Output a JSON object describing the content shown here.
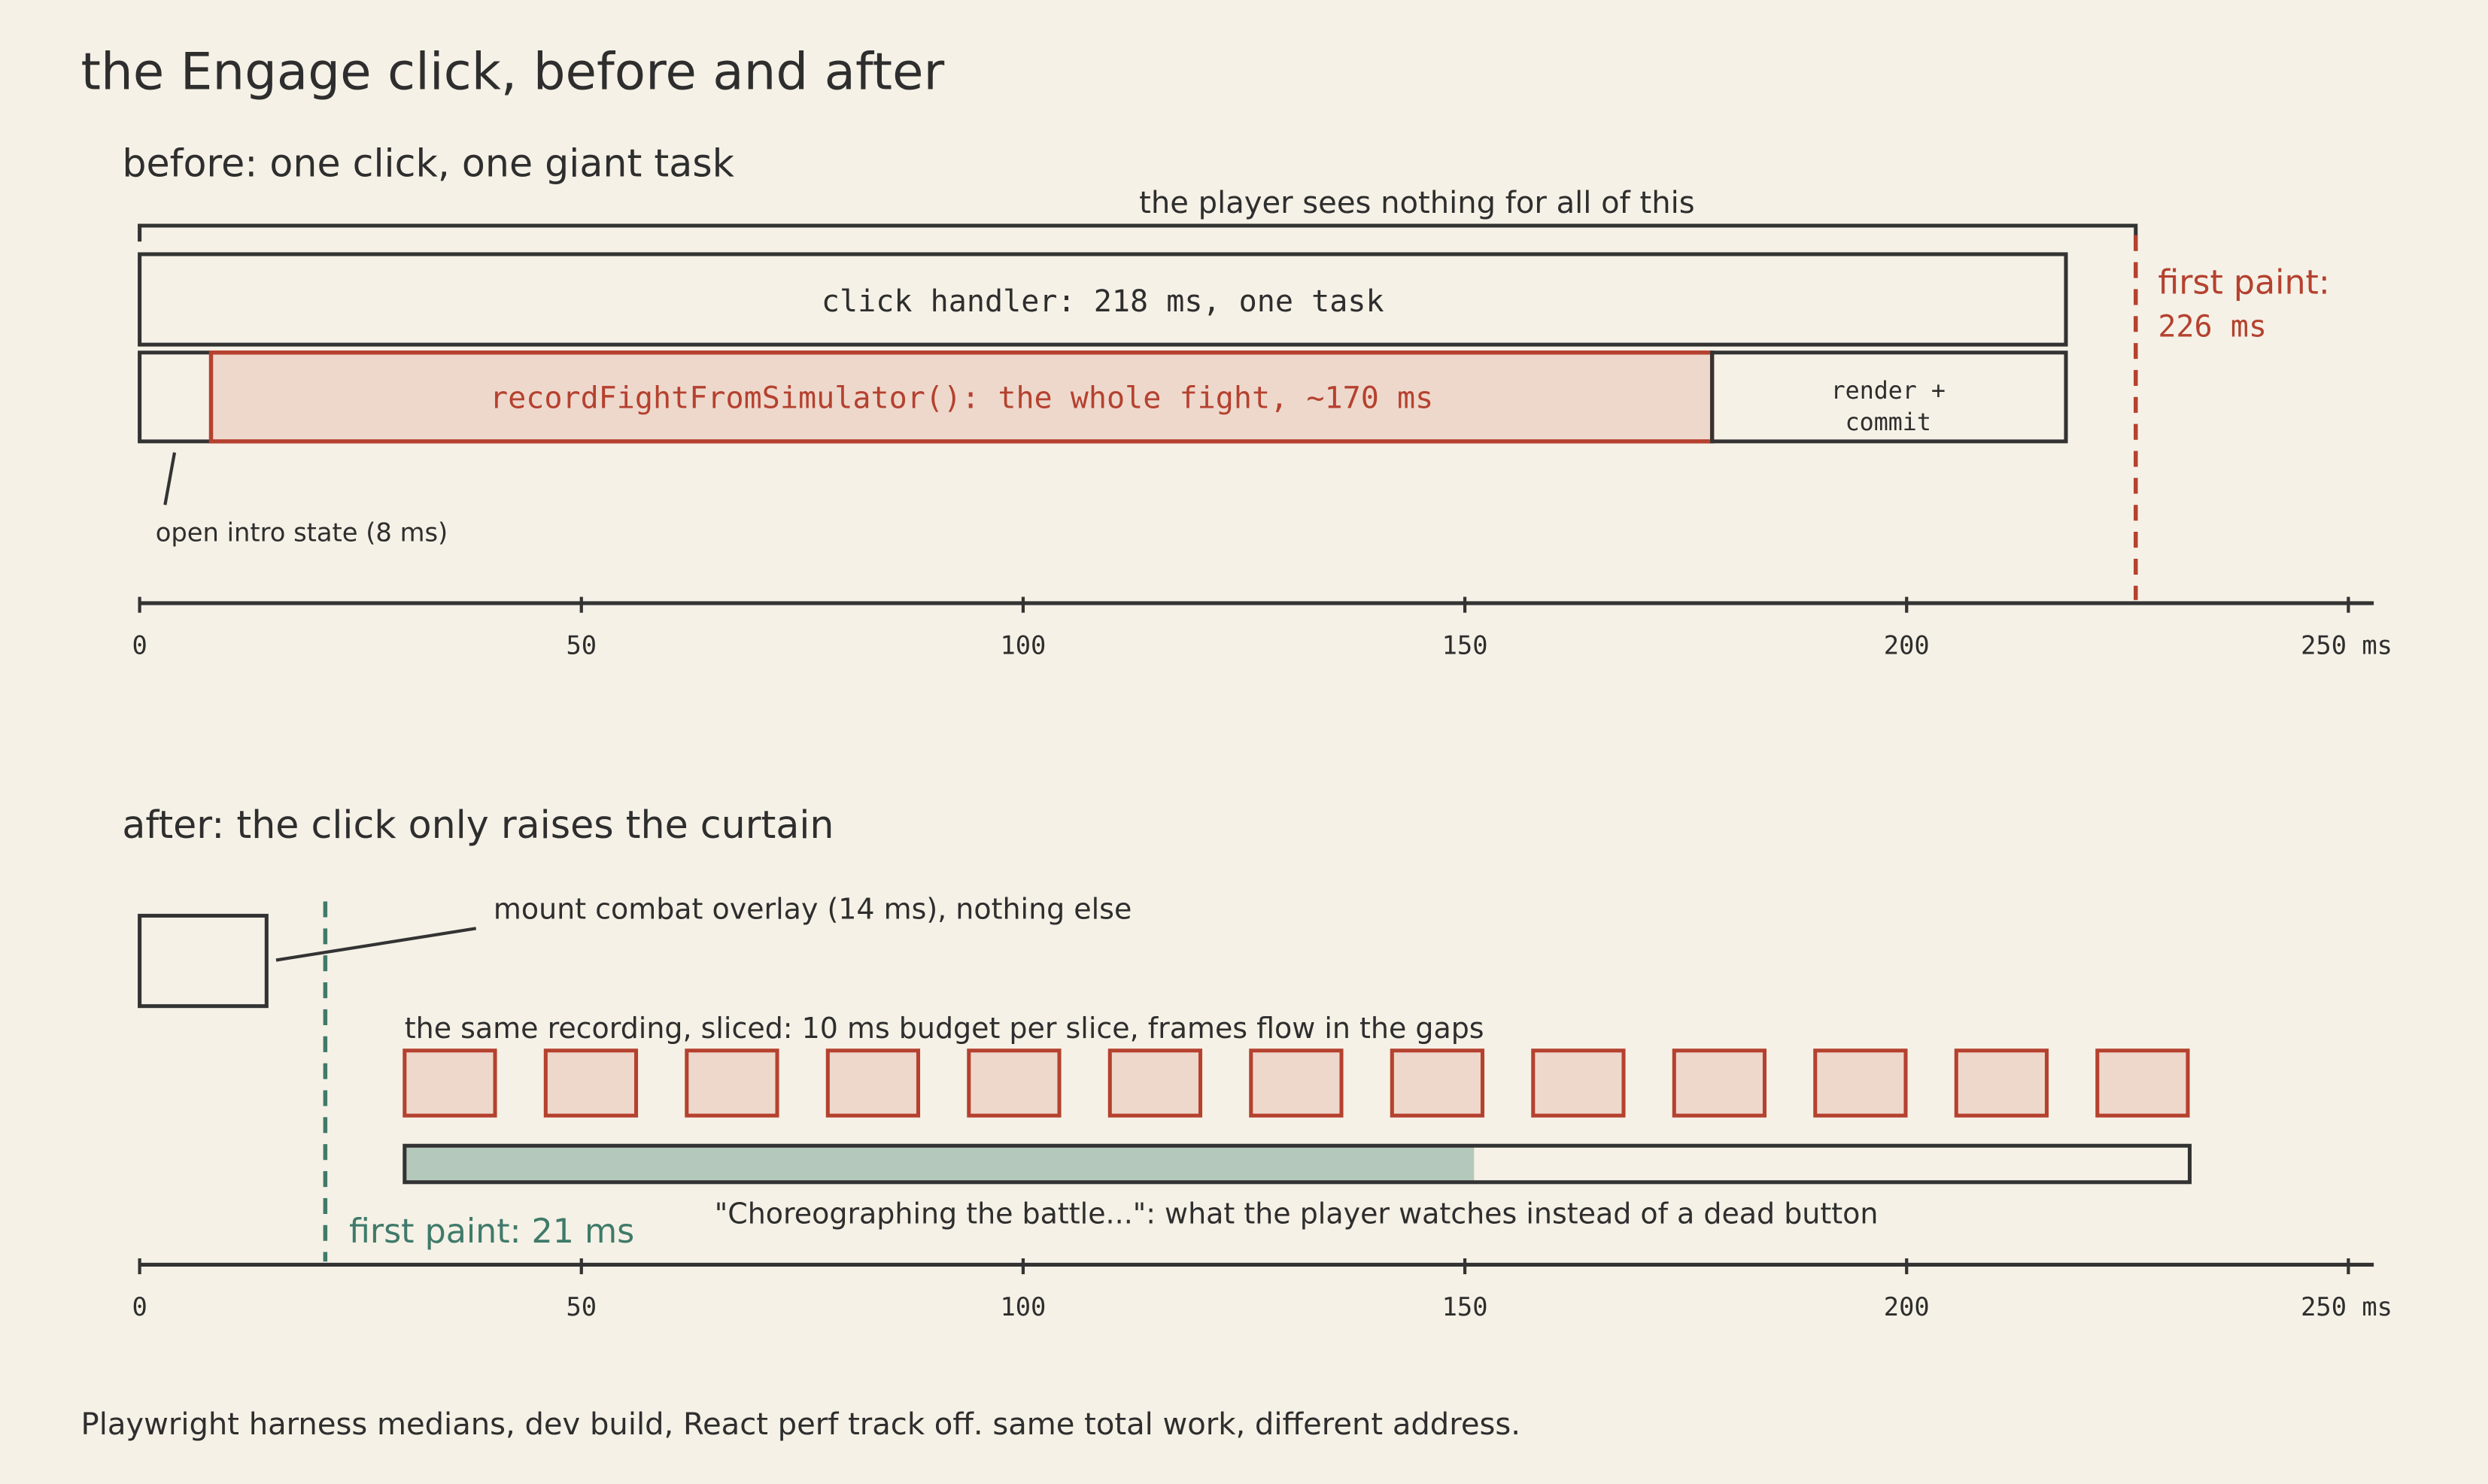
{
  "title": "the Engage click, before and after",
  "before": {
    "heading": "before: one click, one giant task",
    "bracket_note": "the player sees nothing for all of this",
    "click_handler": "click handler: 218 ms, one task",
    "record": "recordFightFromSimulator(): the whole fight, ~170 ms",
    "render": [
      "render +",
      "commit"
    ],
    "intro_note": "open intro state (8 ms)",
    "first_paint": [
      "first paint:",
      "226 ms"
    ]
  },
  "after": {
    "heading": "after: the click only raises the curtain",
    "mount_note": "mount combat overlay (14 ms), nothing else",
    "slices_note": "the same recording, sliced: 10 ms budget per slice, frames flow in the gaps",
    "progress_note": "\"Choreographing the battle...\": what the player watches instead of a dead button",
    "first_paint": "first paint: 21 ms"
  },
  "axis": {
    "labels": [
      "0",
      "50",
      "100",
      "150",
      "200",
      "250 ms"
    ]
  },
  "footer": "Playwright harness medians, dev build, React perf track off. same total work, different address."
}
